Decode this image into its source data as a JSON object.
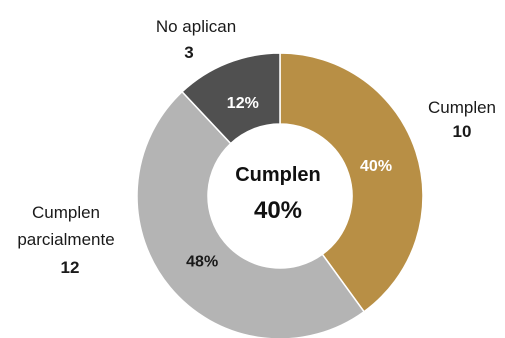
{
  "chart_data": {
    "type": "pie",
    "donut": true,
    "slices": [
      {
        "name": "Cumplen",
        "value": 10,
        "percent_label": "40%",
        "color": "#b88f45",
        "percent_color": "#ffffff"
      },
      {
        "name": "Cumplen parcialmente",
        "value": 12,
        "percent_label": "48%",
        "color": "#b4b4b4",
        "percent_color": "#1a1a1a"
      },
      {
        "name": "No aplican",
        "value": 3,
        "percent_label": "12%",
        "color": "#505050",
        "percent_color": "#ffffff"
      }
    ],
    "center": {
      "title": "Cumplen",
      "value": "40%"
    },
    "legend": "none"
  },
  "labels": {
    "cumplen": {
      "name": "Cumplen",
      "value": "10"
    },
    "parcial": {
      "name_line1": "Cumplen",
      "name_line2": "parcialmente",
      "value": "12"
    },
    "noaplican": {
      "name": "No aplican",
      "value": "3"
    }
  }
}
